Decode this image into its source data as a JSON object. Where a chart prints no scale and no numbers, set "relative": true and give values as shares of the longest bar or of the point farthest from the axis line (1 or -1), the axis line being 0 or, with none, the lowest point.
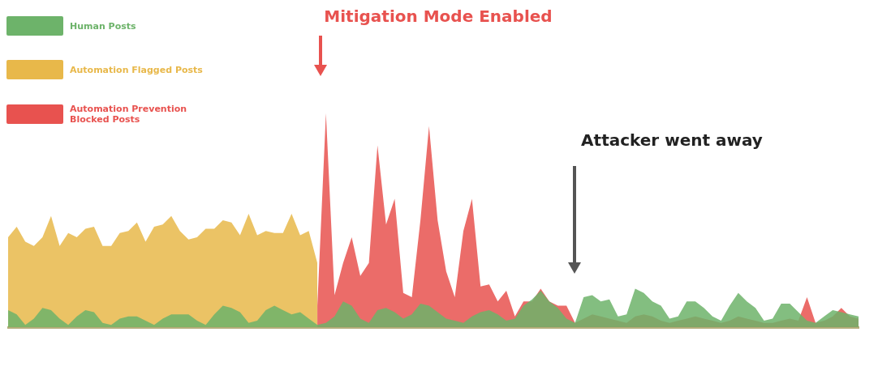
{
  "chart_data": {
    "type": "area",
    "relative": true,
    "legend": "top left",
    "categories": [
      null,
      null,
      null,
      null,
      null,
      null,
      null,
      null,
      null,
      null,
      null,
      null,
      null,
      null,
      null,
      null,
      null,
      null,
      null,
      null,
      null,
      null,
      null,
      null,
      null,
      null,
      null,
      null,
      null,
      null,
      null,
      null,
      null,
      null,
      null,
      null,
      null,
      null,
      null,
      null,
      null,
      null,
      null,
      null,
      null,
      null,
      null,
      null,
      null,
      null,
      null,
      null,
      null,
      null,
      null,
      null,
      null,
      null,
      null,
      null,
      null,
      null,
      null,
      null,
      null,
      null,
      null,
      null,
      null,
      null,
      null,
      null,
      null,
      null,
      null,
      null,
      null,
      null,
      null,
      null,
      null,
      null,
      null,
      null,
      null,
      null,
      null,
      null,
      null,
      null,
      null,
      null,
      null,
      null,
      null,
      null,
      null,
      null,
      null,
      null
    ],
    "annotations": [
      "Mitigation Mode Enabled",
      "Attacker went away"
    ],
    "series": [
      {
        "name": "Human Posts",
        "color": "#6db36a",
        "values": [
          0.08,
          0.06,
          0.01,
          0.04,
          0.09,
          0.08,
          0.04,
          0.01,
          0.05,
          0.08,
          0.07,
          0.02,
          0.01,
          0.04,
          0.05,
          0.05,
          0.03,
          0.01,
          0.04,
          0.06,
          0.06,
          0.06,
          0.03,
          0.01,
          0.06,
          0.1,
          0.09,
          0.07,
          0.02,
          0.03,
          0.08,
          0.1,
          0.08,
          0.06,
          0.07,
          0.04,
          0.01,
          0.02,
          0.05,
          0.12,
          0.1,
          0.04,
          0.02,
          0.08,
          0.09,
          0.07,
          0.04,
          0.06,
          0.11,
          0.1,
          0.07,
          0.04,
          0.03,
          0.02,
          0.05,
          0.07,
          0.08,
          0.06,
          0.03,
          0.04,
          0.1,
          0.13,
          0.17,
          0.12,
          0.09,
          0.04,
          0.02,
          0.14,
          0.15,
          0.12,
          0.13,
          0.05,
          0.06,
          0.18,
          0.16,
          0.12,
          0.1,
          0.04,
          0.05,
          0.12,
          0.12,
          0.09,
          0.05,
          0.03,
          0.1,
          0.16,
          0.12,
          0.09,
          0.03,
          0.04,
          0.11,
          0.11,
          0.07,
          0.03,
          0.02,
          0.05,
          0.08,
          0.07,
          0.06,
          0.05
        ]
      },
      {
        "name": "Automation Flagged Posts",
        "color": "#e8b84a",
        "values": [
          0.42,
          0.47,
          0.4,
          0.38,
          0.42,
          0.52,
          0.38,
          0.44,
          0.42,
          0.46,
          0.47,
          0.38,
          0.38,
          0.44,
          0.45,
          0.49,
          0.4,
          0.47,
          0.48,
          0.52,
          0.45,
          0.41,
          0.42,
          0.46,
          0.46,
          0.5,
          0.49,
          0.43,
          0.53,
          0.43,
          0.45,
          0.44,
          0.44,
          0.53,
          0.43,
          0.45,
          0.3,
          null,
          null,
          null,
          null,
          null,
          null,
          null,
          null,
          null,
          null,
          null,
          null,
          null,
          null,
          null,
          null,
          null,
          null,
          null,
          null,
          null,
          null,
          null,
          null,
          null,
          null,
          null,
          null,
          null,
          null,
          null,
          null,
          null,
          null,
          null,
          null,
          null,
          null,
          null,
          null,
          null,
          null,
          null,
          null,
          null,
          null,
          null,
          null,
          null,
          null,
          null,
          null,
          null,
          null,
          null,
          null,
          null,
          null,
          null,
          null,
          null,
          null,
          null
        ]
      },
      {
        "name": "Automation Prevention Blocked Posts",
        "color": "#e8524f",
        "values": [
          null,
          null,
          null,
          null,
          null,
          null,
          null,
          null,
          null,
          null,
          null,
          null,
          null,
          null,
          null,
          null,
          null,
          null,
          null,
          null,
          null,
          null,
          null,
          null,
          null,
          null,
          null,
          null,
          null,
          null,
          null,
          null,
          null,
          null,
          null,
          null,
          0.1,
          1,
          0.15,
          0.3,
          0.42,
          0.24,
          0.3,
          0.85,
          0.48,
          0.6,
          0.16,
          0.14,
          0.5,
          0.94,
          0.5,
          0.26,
          0.14,
          0.45,
          0.6,
          0.19,
          0.2,
          0.12,
          0.17,
          0.05,
          0.12,
          0.12,
          0.18,
          0.12,
          0.1,
          0.1,
          0.02,
          0.04,
          0.06,
          0.05,
          0.04,
          0.03,
          0.02,
          0.05,
          0.06,
          0.05,
          0.03,
          0.02,
          0.03,
          0.04,
          0.05,
          0.04,
          0.03,
          0.02,
          0.03,
          0.05,
          0.04,
          0.03,
          0.02,
          0.02,
          0.03,
          0.04,
          0.03,
          0.14,
          0.02,
          0.03,
          0.05,
          0.09,
          0.05,
          0.04
        ]
      }
    ]
  }
}
